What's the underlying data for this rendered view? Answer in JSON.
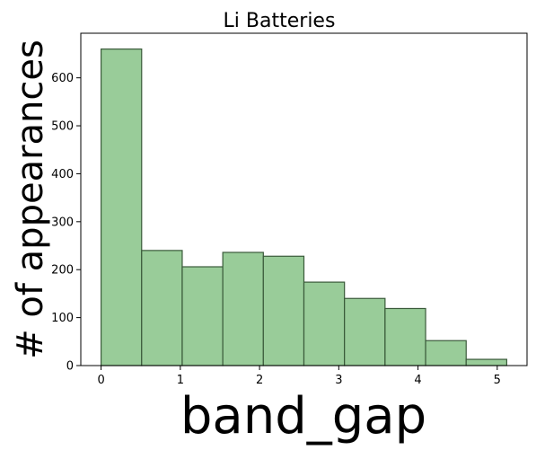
{
  "chart_data": {
    "type": "bar",
    "title": "Li Batteries",
    "xlabel": "band_gap",
    "ylabel": "# of appearances",
    "bin_edges": [
      0.0,
      0.512,
      1.024,
      1.536,
      2.048,
      2.56,
      3.072,
      3.584,
      4.096,
      4.608,
      5.12
    ],
    "values": [
      660,
      240,
      206,
      236,
      228,
      174,
      140,
      119,
      52,
      13
    ],
    "xlim": [
      -0.256,
      5.376
    ],
    "ylim": [
      0,
      693
    ],
    "xticks": [
      0,
      1,
      2,
      3,
      4,
      5
    ],
    "yticks": [
      0,
      100,
      200,
      300,
      400,
      500,
      600
    ],
    "bar_color": "#99cc99",
    "edge_color": "#3a5a3a",
    "grid": false
  }
}
